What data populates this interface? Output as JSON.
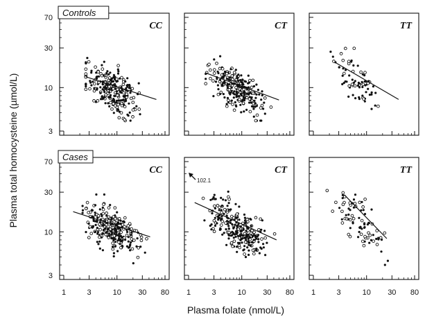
{
  "chart_data": {
    "type": "scatter",
    "xlabel": "Plasma folate (nmol/L)",
    "ylabel": "Plasma total homocysteine (µmol/L)",
    "x_scale": "log",
    "y_scale": "log",
    "xlim": [
      1,
      80
    ],
    "ylim": [
      3,
      70
    ],
    "x_ticks": [
      "1",
      "3",
      "10",
      "30",
      "80"
    ],
    "y_ticks": [
      "70",
      "30",
      "10",
      "3"
    ],
    "annotation": "102.1",
    "panels": [
      {
        "group": "Controls",
        "genotype": "CC",
        "n_points": 260,
        "x_center": 8,
        "y_center": 9.5,
        "x_spread": 0.45,
        "y_spread": 0.16,
        "slope": -0.3,
        "x_range": [
          2.6,
          55
        ],
        "fit": {
          "x": [
            2.6,
            55
          ],
          "y": [
            13.5,
            7.2
          ]
        }
      },
      {
        "group": "Controls",
        "genotype": "CT",
        "n_points": 260,
        "x_center": 8,
        "y_center": 10,
        "x_spread": 0.45,
        "y_spread": 0.16,
        "slope": -0.38,
        "x_range": [
          2.1,
          50
        ],
        "fit": {
          "x": [
            2.1,
            50
          ],
          "y": [
            15,
            7.1
          ]
        }
      },
      {
        "group": "Controls",
        "genotype": "TT",
        "n_points": 75,
        "x_center": 6.5,
        "y_center": 12.5,
        "x_spread": 0.42,
        "y_spread": 0.17,
        "slope": -0.52,
        "x_range": [
          1.8,
          50
        ],
        "fit": {
          "x": [
            2.6,
            40
          ],
          "y": [
            20,
            7.2
          ]
        }
      },
      {
        "group": "Cases",
        "genotype": "CC",
        "n_points": 300,
        "x_center": 8,
        "y_center": 11,
        "x_spread": 0.45,
        "y_spread": 0.16,
        "slope": -0.3,
        "x_range": [
          1.3,
          58
        ],
        "fit": {
          "x": [
            1.5,
            42
          ],
          "y": [
            17.5,
            8.7
          ]
        }
      },
      {
        "group": "Cases",
        "genotype": "CT",
        "n_points": 280,
        "x_center": 9,
        "y_center": 11,
        "x_spread": 0.45,
        "y_spread": 0.17,
        "slope": -0.38,
        "x_range": [
          1.2,
          55
        ],
        "fit": {
          "x": [
            1.3,
            45
          ],
          "y": [
            22.5,
            8.0
          ]
        }
      },
      {
        "group": "Cases",
        "genotype": "TT",
        "n_points": 85,
        "x_center": 7.5,
        "y_center": 14,
        "x_spread": 0.38,
        "y_spread": 0.2,
        "slope": -0.62,
        "x_range": [
          1.6,
          26
        ],
        "fit": {
          "x": [
            3.8,
            24
          ],
          "y": [
            28,
            8.3
          ]
        }
      }
    ]
  }
}
